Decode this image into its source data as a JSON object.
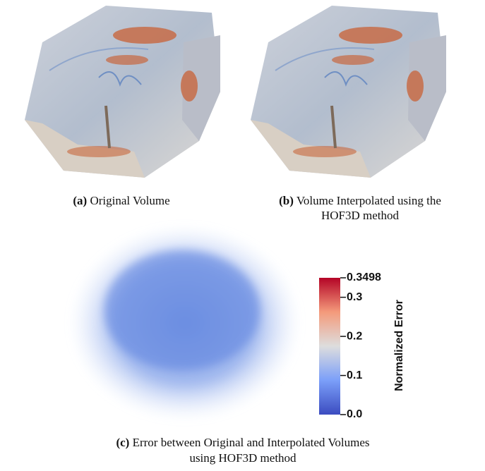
{
  "figure": {
    "panels": [
      {
        "label": "(a)",
        "caption_lines": [
          "Original Volume"
        ]
      },
      {
        "label": "(b)",
        "caption_lines": [
          "Volume Interpolated using the",
          "HOF3D method"
        ]
      },
      {
        "label": "(c)",
        "caption_lines": [
          "Error between Original and Interpolated Volumes",
          "using HOF3D method"
        ]
      }
    ],
    "colorbar": {
      "label": "Normalized Error",
      "lim": [
        0,
        0.3498
      ],
      "ticks": [
        {
          "value": 0,
          "label": "0.0"
        },
        0.1,
        0.2,
        0.3,
        0.3498
      ]
    }
  }
}
